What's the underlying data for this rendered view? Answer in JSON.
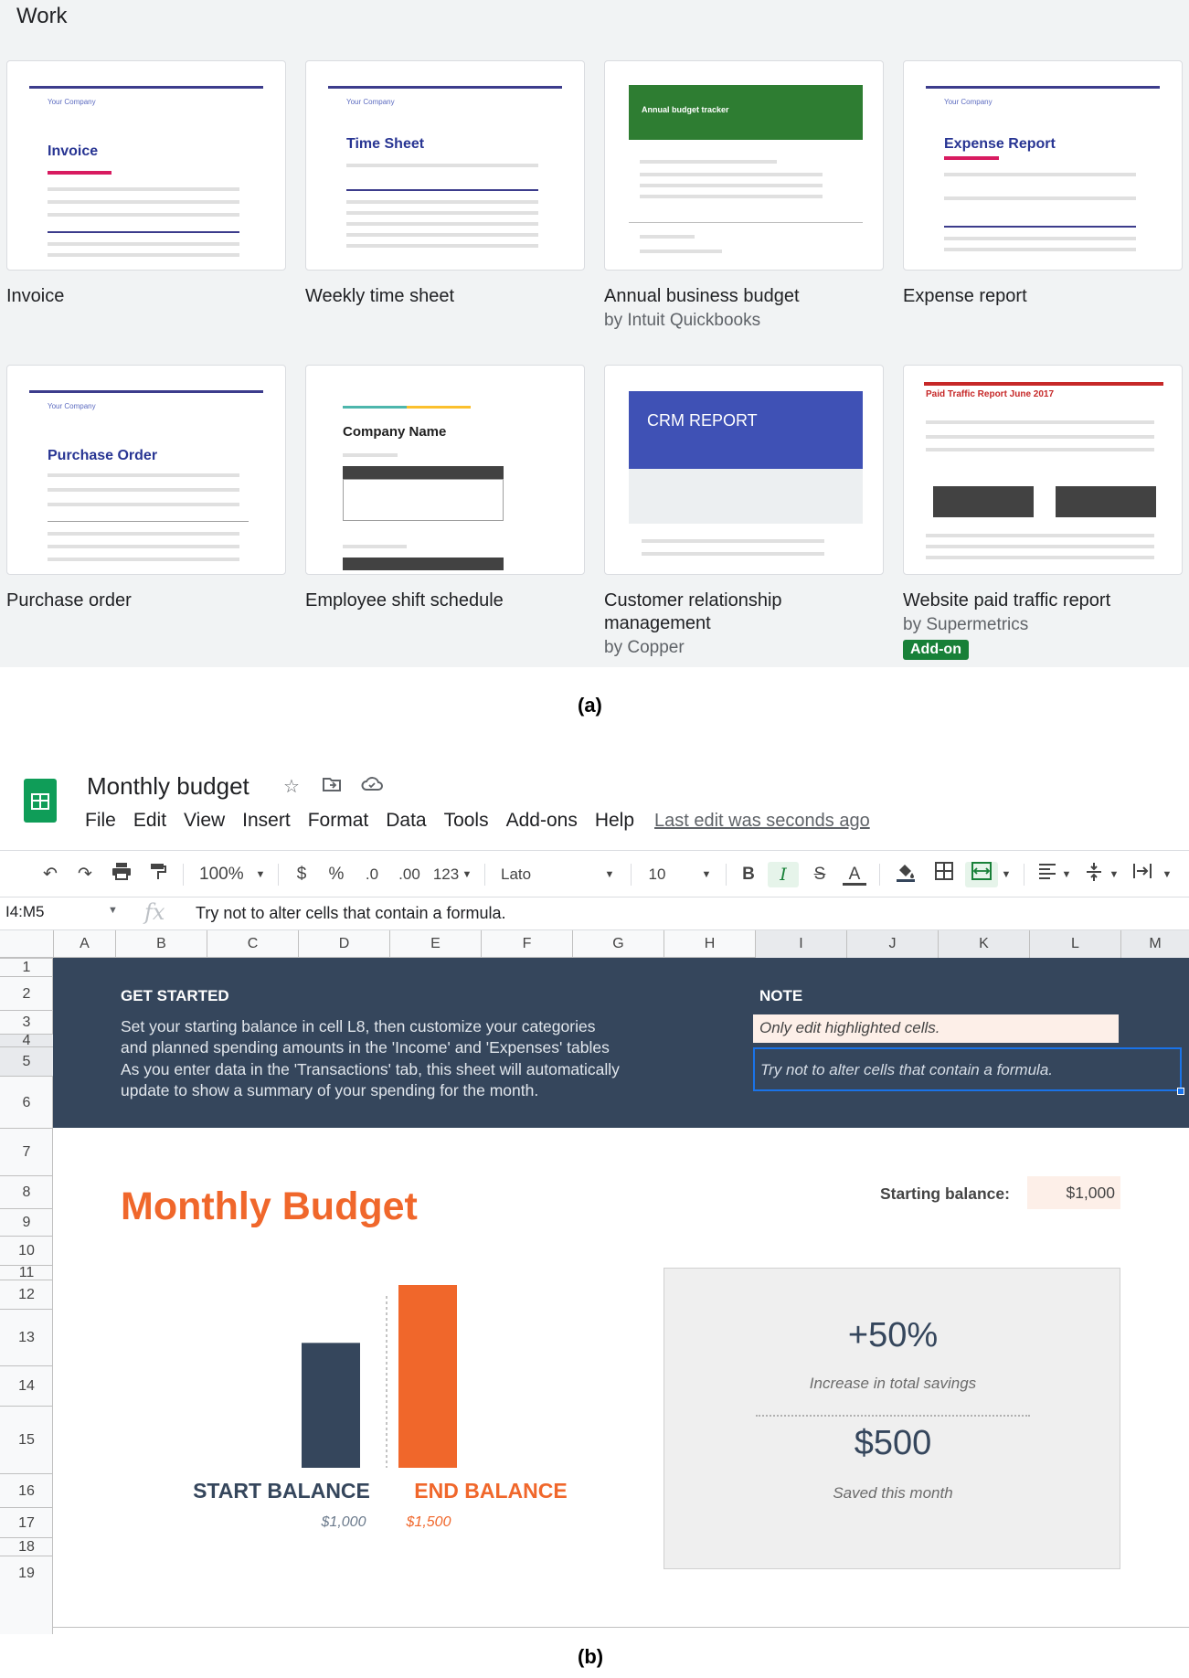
{
  "gallery": {
    "title": "Work",
    "templates": [
      {
        "name": "Invoice",
        "sub": "",
        "thumb_title": "Invoice"
      },
      {
        "name": "Weekly time sheet",
        "sub": "",
        "thumb_title": "Time Sheet"
      },
      {
        "name": "Annual business budget",
        "sub": "by Intuit Quickbooks",
        "thumb_title": "Annual budget tracker"
      },
      {
        "name": "Expense report",
        "sub": "",
        "thumb_title": "Expense Report"
      },
      {
        "name": "Purchase order",
        "sub": "",
        "thumb_title": "Purchase Order"
      },
      {
        "name": "Employee shift schedule",
        "sub": "",
        "thumb_title": "Company Name"
      },
      {
        "name": "Customer relationship management",
        "sub": "by Copper",
        "thumb_title": "CRM REPORT"
      },
      {
        "name": "Website paid traffic report",
        "sub": "by Supermetrics",
        "thumb_title": "Paid Traffic Report June 2017",
        "badge": "Add-on"
      }
    ],
    "thumb_company": "Your Company"
  },
  "captions": {
    "a": "(a)",
    "b": "(b)"
  },
  "app": {
    "doc_title": "Monthly budget",
    "menu": [
      "File",
      "Edit",
      "View",
      "Insert",
      "Format",
      "Data",
      "Tools",
      "Add-ons",
      "Help"
    ],
    "last_edit": "Last edit was seconds ago",
    "toolbar": {
      "zoom": "100%",
      "currency": "$",
      "percent": "%",
      "dec_decrease": ".0",
      "dec_increase": ".00",
      "more_formats": "123",
      "font": "Lato",
      "font_size": "10",
      "bold": "B",
      "italic": "I",
      "strike": "S",
      "text_color": "A"
    },
    "namebox": "I4:M5",
    "fx": "fx",
    "formula": "Try not to alter cells that contain a formula.",
    "columns": [
      "A",
      "B",
      "C",
      "D",
      "E",
      "F",
      "G",
      "H",
      "I",
      "J",
      "K",
      "L",
      "M"
    ],
    "rows": [
      "1",
      "2",
      "3",
      "4",
      "5",
      "6",
      "7",
      "8",
      "9",
      "10",
      "11",
      "12",
      "13",
      "14",
      "15",
      "16",
      "17",
      "18",
      "19"
    ]
  },
  "sheet": {
    "get_started_title": "GET STARTED",
    "get_started_line1": "Set your starting balance in cell L8, then customize your categories",
    "get_started_line2": "and planned spending amounts in the 'Income' and 'Expenses' tables",
    "get_started_line3": "As you enter data in the 'Transactions' tab, this sheet will automatically",
    "get_started_line4": "update to show a summary of your spending for the month.",
    "note_title": "NOTE",
    "note_1": "Only edit highlighted cells.",
    "note_2": "Try not to alter cells that contain a formula.",
    "main_title": "Monthly Budget",
    "starting_balance_label": "Starting balance:",
    "starting_balance_value": "$1,000",
    "savings_pct": "+50%",
    "savings_pct_label": "Increase in total savings",
    "saved_value": "$500",
    "saved_label": "Saved this month"
  },
  "chart_data": {
    "type": "bar",
    "categories": [
      "START BALANCE",
      "END BALANCE"
    ],
    "values": [
      1000,
      1500
    ],
    "value_labels": [
      "$1,000",
      "$1,500"
    ],
    "colors": [
      "#35465c",
      "#f0672b"
    ],
    "ylim": [
      0,
      1500
    ]
  },
  "colors": {
    "accent_orange": "#f0672b",
    "navy": "#35465c",
    "highlight": "#fdefe8",
    "sheets_green": "#0f9d58",
    "selection_blue": "#1a73e8"
  }
}
